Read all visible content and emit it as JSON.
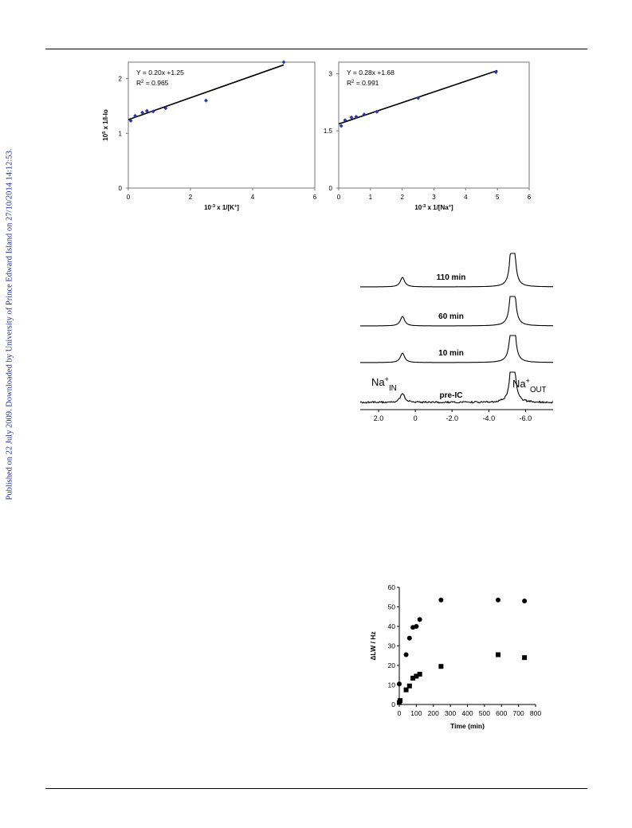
{
  "sidebar": {
    "text": "Published on 22 July 2009. Downloaded by University of Prince Edward Island on 27/10/2014 14:12:53."
  },
  "chart_data": [
    {
      "type": "scatter",
      "xlabel": "10<sup>-3</sup> x 1/[K<sup>+</sup>]",
      "ylabel": "10<sup>5</sup> x 1/I-Io",
      "xlim": [
        0,
        6
      ],
      "ylim": [
        0,
        2.3
      ],
      "xticks": [
        "0",
        "2",
        "4",
        "6"
      ],
      "yticks": [
        "0",
        "1",
        "2"
      ],
      "equation": "Y = 0.20x +1.25",
      "r2": "R<sup>2</sup> = 0.965",
      "marker_color": "#2b3aa0",
      "points": [
        [
          0.08,
          1.23
        ],
        [
          0.22,
          1.32
        ],
        [
          0.45,
          1.38
        ],
        [
          0.6,
          1.41
        ],
        [
          0.8,
          1.4
        ],
        [
          1.2,
          1.46
        ],
        [
          2.5,
          1.6
        ],
        [
          5.0,
          2.3
        ]
      ],
      "fit": {
        "slope": 0.2,
        "intercept": 1.25,
        "x_range": [
          0,
          5
        ]
      }
    },
    {
      "type": "scatter",
      "xlabel": "10<sup>-3</sup> x 1/[Na<sup>+</sup>]",
      "ylabel": "",
      "xlim": [
        0,
        6
      ],
      "ylim": [
        0,
        3.3
      ],
      "xticks": [
        "0",
        "1",
        "2",
        "3",
        "4",
        "5",
        "6"
      ],
      "yticks": [
        "0",
        "1.5",
        "3"
      ],
      "equation": "Y = 0.28x   +1.68",
      "r2": "R<sup>2</sup> = 0.991",
      "marker_color": "#2b3aa0",
      "points": [
        [
          0.08,
          1.63
        ],
        [
          0.2,
          1.78
        ],
        [
          0.4,
          1.85
        ],
        [
          0.55,
          1.87
        ],
        [
          0.8,
          1.93
        ],
        [
          1.2,
          2.0
        ],
        [
          2.5,
          2.36
        ],
        [
          4.95,
          3.04
        ]
      ],
      "fit": {
        "slope": 0.28,
        "intercept": 1.68,
        "x_range": [
          0,
          5
        ]
      }
    },
    {
      "type": "line",
      "subtype": "nmr_stack",
      "x_ticks": [
        "2.0",
        "0",
        "-2.0",
        "-4.0",
        "-6.0"
      ],
      "x_tick_values": [
        2.0,
        0,
        -2.0,
        -4.0,
        -6.0
      ],
      "xlim": [
        3.0,
        -7.5
      ],
      "peaks": {
        "in": 0.7,
        "out": -5.3
      },
      "traces": [
        {
          "label": "110 min"
        },
        {
          "label": "60 min"
        },
        {
          "label": "10 min"
        },
        {
          "label": "pre-IC"
        }
      ],
      "annotations": {
        "in_label": "Na",
        "in_sub": "IN",
        "out_label": "Na",
        "out_sub": "OUT",
        "sup": "+"
      }
    },
    {
      "type": "scatter",
      "xlabel": "Time (min)",
      "ylabel": "ΔLW / Hz",
      "xlim": [
        0,
        800
      ],
      "ylim": [
        0,
        60
      ],
      "xticks": [
        "0",
        "100",
        "200",
        "300",
        "400",
        "500",
        "600",
        "700",
        "800"
      ],
      "yticks": [
        "0",
        "10",
        "20",
        "30",
        "40",
        "50",
        "60"
      ],
      "series": [
        {
          "marker": "circle",
          "points": [
            [
              0,
              10.5
            ],
            [
              40,
              25.5
            ],
            [
              60,
              34
            ],
            [
              80,
              39.5
            ],
            [
              100,
              40
            ],
            [
              120,
              43.5
            ],
            [
              245,
              53.5
            ],
            [
              580,
              53.5
            ],
            [
              735,
              53
            ]
          ]
        },
        {
          "marker": "square",
          "points": [
            [
              0,
              1
            ],
            [
              5,
              2
            ],
            [
              40,
              7.5
            ],
            [
              60,
              9.5
            ],
            [
              80,
              13.5
            ],
            [
              100,
              14.5
            ],
            [
              120,
              15.5
            ],
            [
              245,
              19.5
            ],
            [
              580,
              25.5
            ],
            [
              735,
              24
            ]
          ]
        }
      ]
    }
  ]
}
